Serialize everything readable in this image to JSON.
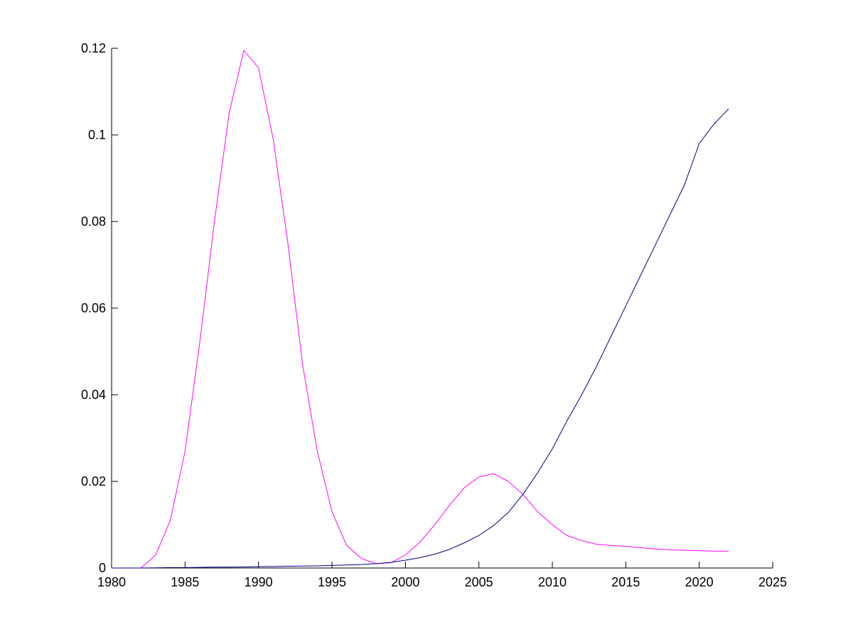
{
  "chart_data": {
    "type": "line",
    "x": [
      1980,
      1981,
      1982,
      1983,
      1984,
      1985,
      1986,
      1987,
      1988,
      1989,
      1990,
      1991,
      1992,
      1993,
      1994,
      1995,
      1996,
      1997,
      1998,
      1999,
      2000,
      2001,
      2002,
      2003,
      2004,
      2005,
      2006,
      2007,
      2008,
      2009,
      2010,
      2011,
      2012,
      2013,
      2014,
      2015,
      2016,
      2017,
      2018,
      2019,
      2020,
      2021,
      2022
    ],
    "series": [
      {
        "color": "#ff00ff",
        "values": [
          0,
          0,
          0,
          0.003,
          0.011,
          0.027,
          0.052,
          0.08,
          0.105,
          0.1195,
          0.1155,
          0.099,
          0.075,
          0.047,
          0.027,
          0.013,
          0.0052,
          0.0022,
          0.001,
          0.0012,
          0.003,
          0.006,
          0.01,
          0.0145,
          0.0185,
          0.021,
          0.0218,
          0.02,
          0.017,
          0.013,
          0.01,
          0.0075,
          0.0063,
          0.0055,
          0.0052,
          0.005,
          0.0047,
          0.0044,
          0.0042,
          0.0041,
          0.004,
          0.0039,
          0.0039
        ]
      },
      {
        "color": "#00008b",
        "values": [
          0,
          0,
          0,
          5e-05,
          0.0001,
          0.0001,
          0.00015,
          0.0002,
          0.0002,
          0.00025,
          0.0003,
          0.00035,
          0.0004,
          0.00045,
          0.0005,
          0.0006,
          0.0007,
          0.0008,
          0.001,
          0.0013,
          0.0018,
          0.0024,
          0.0032,
          0.0043,
          0.0058,
          0.0075,
          0.0098,
          0.0128,
          0.017,
          0.022,
          0.0275,
          0.034,
          0.04,
          0.0465,
          0.0535,
          0.0605,
          0.0675,
          0.0745,
          0.0815,
          0.0885,
          0.098,
          0.1025,
          0.106
        ]
      }
    ],
    "xlim": [
      1980,
      2025
    ],
    "xticks": [
      1980,
      1985,
      1990,
      1995,
      2000,
      2005,
      2010,
      2015,
      2020,
      2025
    ],
    "ylim": [
      0,
      0.12
    ],
    "yticks": [
      0,
      0.02,
      0.04,
      0.06,
      0.08,
      0.1,
      0.12
    ],
    "grid": false
  }
}
